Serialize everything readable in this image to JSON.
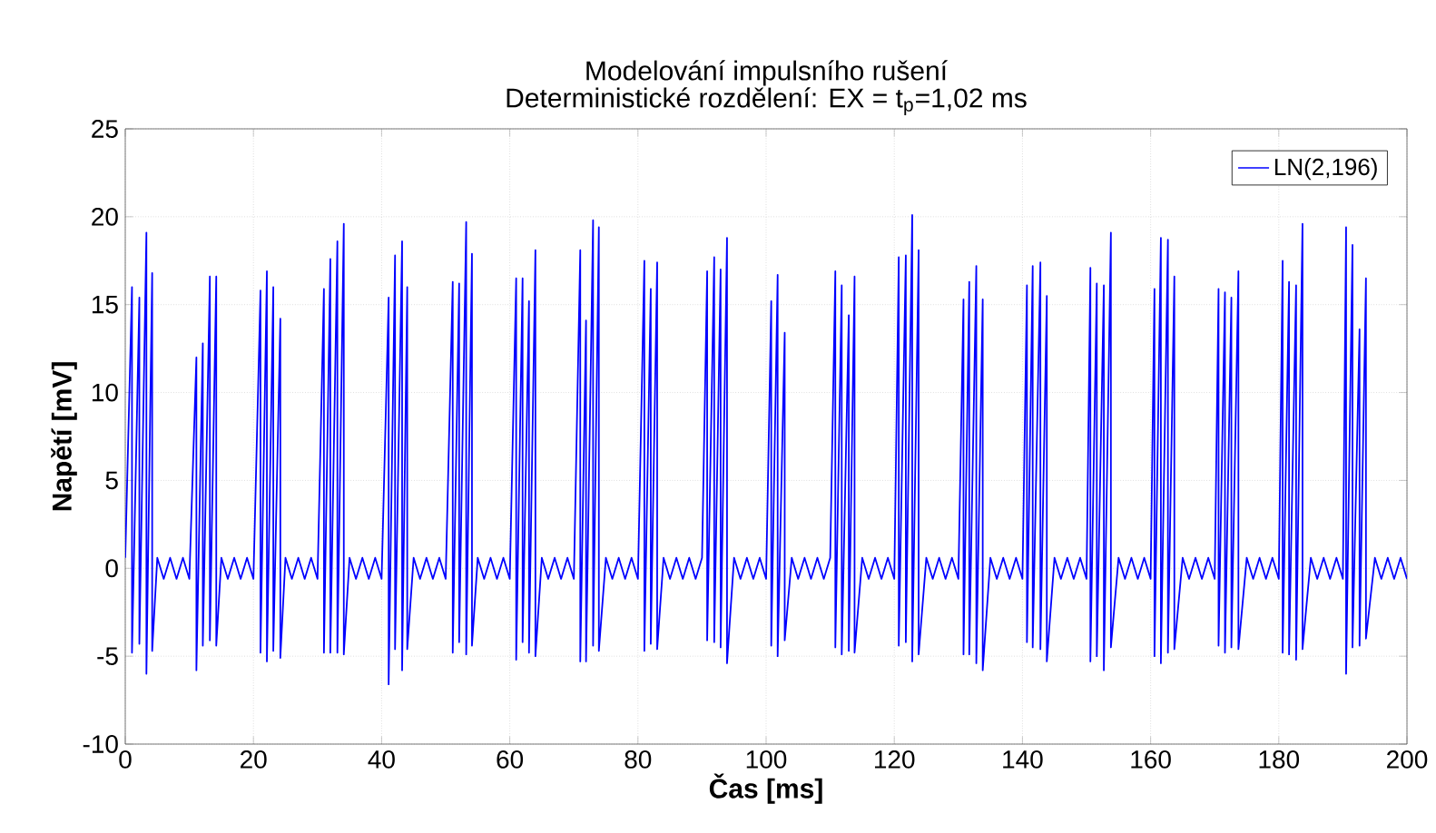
{
  "chart_data": {
    "type": "line",
    "title": "Modelování impulsního rušení",
    "subtitle": "Deterministické rozdělení: EX = t$_{p}$=1,02 ms",
    "xlabel": "Čas [ms]",
    "ylabel": "Napětí [mV]",
    "xlim": [
      0,
      200
    ],
    "ylim": [
      -10,
      25
    ],
    "xticks": [
      0,
      20,
      40,
      60,
      80,
      100,
      120,
      140,
      160,
      180,
      200
    ],
    "yticks": [
      -10,
      -5,
      0,
      5,
      10,
      15,
      20,
      25
    ],
    "grid": true,
    "legend": "top right",
    "series": [
      {
        "name": "LN(2,196)",
        "color": "#0000ff",
        "line_style": "solid",
        "x": [
          0,
          1.05,
          1.05,
          2.2,
          2.2,
          3.3,
          3.3,
          4.2,
          4.2,
          5,
          6,
          7,
          8,
          9,
          10,
          11.1,
          11.1,
          12.1,
          12.1,
          13.2,
          13.2,
          14.2,
          14.2,
          15,
          16,
          17,
          18,
          19,
          20,
          21.1,
          21.1,
          22.1,
          22.1,
          23.1,
          23.1,
          24.2,
          24.2,
          25,
          26,
          27,
          28,
          29,
          30,
          31.0,
          31.0,
          32.0,
          32.0,
          33.1,
          33.1,
          34.1,
          34.1,
          35,
          36,
          37,
          38,
          39,
          40,
          41.1,
          41.1,
          42.1,
          42.1,
          43.2,
          43.2,
          44.0,
          44.0,
          45,
          46,
          47,
          48,
          49,
          50,
          51.1,
          51.1,
          52.1,
          52.1,
          53.2,
          53.2,
          54.1,
          54.1,
          55,
          56,
          57,
          58,
          59,
          60,
          61.0,
          61.0,
          62.0,
          62.0,
          63.0,
          63.0,
          64.0,
          64.0,
          65,
          66,
          67,
          68,
          69,
          70,
          71.0,
          71.0,
          71.9,
          71.9,
          73.0,
          73.0,
          73.9,
          73.9,
          75,
          76,
          77,
          78,
          79,
          80,
          81.0,
          81.0,
          82.0,
          82.0,
          83.0,
          83.0,
          84,
          85,
          86,
          87,
          88,
          89,
          90,
          90.8,
          90.8,
          91.9,
          91.9,
          92.9,
          92.9,
          93.9,
          93.9,
          95,
          96,
          97,
          98,
          99,
          100,
          100.8,
          100.8,
          101.8,
          101.8,
          102.9,
          102.9,
          104,
          105,
          106,
          107,
          108,
          109,
          110,
          110.8,
          110.8,
          111.8,
          111.8,
          112.9,
          112.9,
          113.8,
          113.8,
          115,
          116,
          117,
          118,
          119,
          120,
          120.7,
          120.7,
          121.8,
          121.8,
          122.8,
          122.8,
          123.8,
          123.8,
          125,
          126,
          127,
          128,
          129,
          130,
          130.8,
          130.8,
          131.7,
          131.7,
          132.8,
          132.8,
          133.8,
          133.8,
          135,
          136,
          137,
          138,
          139,
          140,
          140.7,
          140.7,
          141.6,
          141.6,
          142.8,
          142.8,
          143.8,
          143.8,
          145,
          146,
          147,
          148,
          149,
          150,
          150.6,
          150.6,
          151.6,
          151.6,
          152.7,
          152.7,
          153.8,
          153.8,
          155,
          156,
          157,
          158,
          159,
          160,
          160.6,
          160.6,
          161.6,
          161.6,
          162.7,
          162.7,
          163.7,
          163.7,
          165,
          166,
          167,
          168,
          169,
          170,
          170.6,
          170.6,
          171.6,
          171.6,
          172.6,
          172.6,
          173.7,
          173.7,
          175,
          176,
          177,
          178,
          179,
          180,
          180.6,
          180.6,
          181.6,
          181.6,
          182.7,
          182.7,
          183.7,
          183.7,
          185,
          186,
          187,
          188,
          189,
          190,
          190.5,
          190.5,
          191.5,
          191.5,
          192.6,
          192.6,
          193.6,
          193.6,
          195,
          196,
          197,
          198,
          199,
          200
        ],
        "values": [
          0.6,
          16.0,
          -4.8,
          15.4,
          -4.3,
          19.1,
          -6.0,
          16.8,
          -4.7,
          0.6,
          -0.6,
          0.6,
          -0.6,
          0.6,
          -0.6,
          12.0,
          -5.8,
          12.8,
          -4.4,
          16.6,
          -4.1,
          16.6,
          -4.4,
          0.6,
          -0.6,
          0.6,
          -0.6,
          0.6,
          -0.6,
          15.8,
          -4.8,
          16.9,
          -5.3,
          16.0,
          -4.7,
          14.2,
          -5.1,
          0.6,
          -0.6,
          0.6,
          -0.6,
          0.6,
          -0.6,
          15.9,
          -4.8,
          17.6,
          -4.8,
          18.6,
          -4.8,
          19.6,
          -4.9,
          0.6,
          -0.6,
          0.6,
          -0.6,
          0.6,
          -0.6,
          15.4,
          -6.6,
          17.8,
          -4.6,
          18.6,
          -5.8,
          16.0,
          -4.6,
          0.6,
          -0.6,
          0.6,
          -0.6,
          0.6,
          -0.6,
          16.3,
          -4.8,
          16.2,
          -4.2,
          19.7,
          -4.9,
          17.9,
          -4.4,
          0.6,
          -0.6,
          0.6,
          -0.6,
          0.6,
          -0.6,
          16.5,
          -5.2,
          16.5,
          -4.2,
          15.2,
          -4.8,
          18.1,
          -5.0,
          0.6,
          -0.6,
          0.6,
          -0.6,
          0.6,
          -0.6,
          18.1,
          -5.3,
          14.1,
          -5.3,
          19.8,
          -4.4,
          19.4,
          -4.7,
          0.6,
          -0.6,
          0.6,
          -0.6,
          0.6,
          -0.6,
          17.5,
          -4.7,
          15.9,
          -4.3,
          17.4,
          -4.6,
          0.6,
          -0.6,
          0.6,
          -0.6,
          0.6,
          -0.6,
          0.6,
          16.9,
          -4.1,
          17.7,
          -4.2,
          17.0,
          -4.5,
          18.8,
          -5.4,
          0.6,
          -0.6,
          0.6,
          -0.6,
          0.6,
          -0.6,
          15.2,
          -4.4,
          16.7,
          -5.0,
          13.4,
          -4.1,
          0.6,
          -0.6,
          0.6,
          -0.6,
          0.6,
          -0.6,
          0.6,
          16.9,
          -4.5,
          16.1,
          -4.9,
          14.4,
          -4.7,
          16.6,
          -4.8,
          0.6,
          -0.6,
          0.6,
          -0.6,
          0.6,
          -0.6,
          17.7,
          -4.4,
          17.8,
          -4.2,
          20.1,
          -5.3,
          18.1,
          -4.9,
          0.6,
          -0.6,
          0.6,
          -0.6,
          0.6,
          -0.6,
          15.3,
          -4.9,
          16.3,
          -4.9,
          17.2,
          -5.4,
          15.3,
          -5.8,
          0.6,
          -0.6,
          0.6,
          -0.6,
          0.6,
          -0.6,
          16.1,
          -4.2,
          17.2,
          -4.5,
          17.4,
          -4.6,
          15.5,
          -5.3,
          0.6,
          -0.6,
          0.6,
          -0.6,
          0.6,
          -0.6,
          17.1,
          -5.3,
          16.2,
          -5.0,
          16.1,
          -5.8,
          19.1,
          -4.5,
          0.6,
          -0.6,
          0.6,
          -0.6,
          0.6,
          -0.6,
          15.9,
          -5.0,
          18.8,
          -5.4,
          18.7,
          -4.8,
          16.6,
          -4.6,
          0.6,
          -0.6,
          0.6,
          -0.6,
          0.6,
          -0.6,
          15.9,
          -4.4,
          15.7,
          -4.8,
          15.4,
          -4.5,
          16.9,
          -4.6,
          0.6,
          -0.6,
          0.6,
          -0.6,
          0.6,
          -0.6,
          17.5,
          -4.8,
          16.3,
          -4.9,
          16.1,
          -5.2,
          19.6,
          -4.6,
          0.6,
          -0.6,
          0.6,
          -0.6,
          0.6,
          -0.6,
          19.4,
          -6.0,
          18.4,
          -4.5,
          13.6,
          -4.4,
          16.5,
          -4.0,
          0.6,
          -0.6,
          0.6,
          -0.6,
          0.6,
          -0.6
        ]
      }
    ]
  }
}
